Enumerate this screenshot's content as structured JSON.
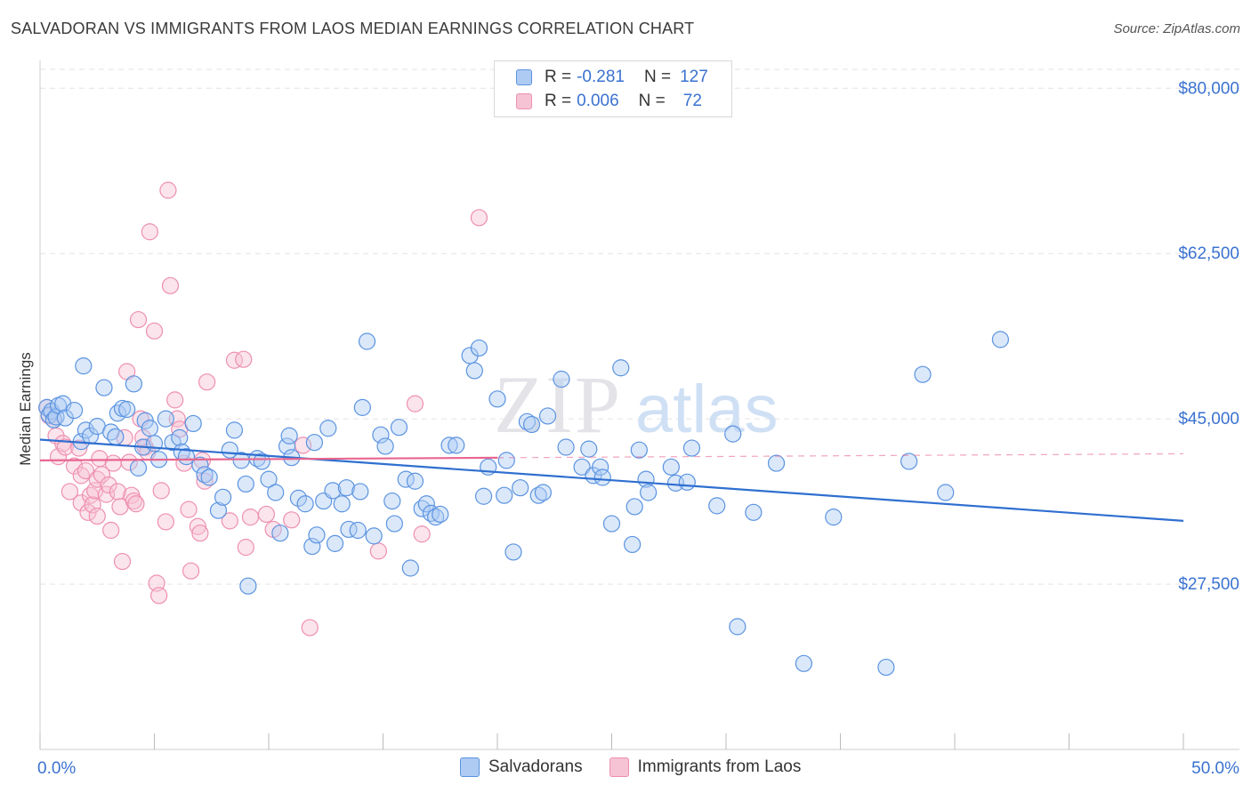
{
  "title": "SALVADORAN VS IMMIGRANTS FROM LAOS MEDIAN EARNINGS CORRELATION CHART",
  "source": "Source: ZipAtlas.com",
  "watermark": {
    "zip": "ZIP",
    "atlas": "atlas"
  },
  "colors": {
    "blue": "#5b93e0",
    "blue_fill": "#aecbf3",
    "blue_line": "#2f6fd0",
    "pink": "#ee8fb0",
    "pink_fill": "#f6c3d5",
    "pink_line": "#e8668f",
    "tick_text": "#3a72d0",
    "grid": "#e3e3e3"
  },
  "legend": {
    "rows": [
      {
        "r_label": "R =",
        "r_value": "-0.281",
        "n_label": "N =",
        "n_value": "127",
        "series": "blue"
      },
      {
        "r_label": "R =",
        "r_value": "0.006",
        "n_label": "N =",
        "n_value": "72",
        "series": "pink"
      }
    ]
  },
  "bottom_legend": [
    {
      "label": "Salvadorans",
      "series": "blue"
    },
    {
      "label": "Immigrants from Laos",
      "series": "pink"
    }
  ],
  "chart_data": {
    "type": "scatter",
    "title": "SALVADORAN VS IMMIGRANTS FROM LAOS MEDIAN EARNINGS CORRELATION CHART",
    "xlabel": "",
    "ylabel": "Median Earnings",
    "xlim": [
      0,
      50
    ],
    "ylim": [
      10000,
      82000
    ],
    "x_tick_labels": [
      {
        "value": 0,
        "label": "0.0%"
      },
      {
        "value": 50,
        "label": "50.0%"
      }
    ],
    "y_tick_labels": [
      {
        "value": 80000,
        "label": "$80,000"
      },
      {
        "value": 62500,
        "label": "$62,500"
      },
      {
        "value": 45000,
        "label": "$45,000"
      },
      {
        "value": 27500,
        "label": "$27,500"
      }
    ],
    "grid": true,
    "series": [
      {
        "name": "Salvadorans",
        "color": "blue",
        "trend": {
          "x": [
            0,
            50
          ],
          "y": [
            42800,
            34200
          ],
          "dashed_from": null
        },
        "points": [
          [
            0.3,
            46200
          ],
          [
            0.4,
            45400
          ],
          [
            0.5,
            45800
          ],
          [
            0.6,
            44900
          ],
          [
            0.7,
            45200
          ],
          [
            0.8,
            46400
          ],
          [
            1.0,
            46600
          ],
          [
            1.1,
            45100
          ],
          [
            1.5,
            45900
          ],
          [
            1.8,
            42600
          ],
          [
            1.9,
            50600
          ],
          [
            2.0,
            43800
          ],
          [
            2.2,
            43200
          ],
          [
            2.5,
            44200
          ],
          [
            2.8,
            48300
          ],
          [
            3.1,
            43600
          ],
          [
            3.3,
            43100
          ],
          [
            3.4,
            45600
          ],
          [
            3.6,
            46100
          ],
          [
            3.8,
            46000
          ],
          [
            4.1,
            48700
          ],
          [
            4.3,
            39800
          ],
          [
            4.5,
            42000
          ],
          [
            4.6,
            44800
          ],
          [
            4.8,
            44000
          ],
          [
            5.0,
            42400
          ],
          [
            5.2,
            40700
          ],
          [
            5.5,
            45000
          ],
          [
            5.8,
            42500
          ],
          [
            6.1,
            43000
          ],
          [
            6.2,
            41500
          ],
          [
            6.4,
            41000
          ],
          [
            6.7,
            44500
          ],
          [
            7.0,
            40100
          ],
          [
            7.2,
            39100
          ],
          [
            7.4,
            38800
          ],
          [
            7.8,
            35300
          ],
          [
            8.0,
            36700
          ],
          [
            8.3,
            41700
          ],
          [
            8.5,
            43800
          ],
          [
            8.8,
            40600
          ],
          [
            9.0,
            38100
          ],
          [
            9.1,
            27300
          ],
          [
            9.5,
            40800
          ],
          [
            9.7,
            40500
          ],
          [
            10.0,
            38600
          ],
          [
            10.3,
            37200
          ],
          [
            10.5,
            32900
          ],
          [
            10.8,
            42100
          ],
          [
            10.9,
            43200
          ],
          [
            11.0,
            40900
          ],
          [
            11.3,
            36600
          ],
          [
            11.6,
            36000
          ],
          [
            11.9,
            31500
          ],
          [
            12.0,
            42500
          ],
          [
            12.1,
            32700
          ],
          [
            12.4,
            36300
          ],
          [
            12.6,
            44000
          ],
          [
            12.8,
            37400
          ],
          [
            12.9,
            31800
          ],
          [
            13.2,
            36000
          ],
          [
            13.4,
            37700
          ],
          [
            13.5,
            33300
          ],
          [
            13.9,
            33200
          ],
          [
            14.0,
            37300
          ],
          [
            14.1,
            46200
          ],
          [
            14.3,
            53200
          ],
          [
            14.6,
            32600
          ],
          [
            14.9,
            43300
          ],
          [
            15.1,
            42100
          ],
          [
            15.4,
            36300
          ],
          [
            15.5,
            33900
          ],
          [
            15.7,
            44100
          ],
          [
            16.0,
            38600
          ],
          [
            16.2,
            29200
          ],
          [
            16.4,
            38400
          ],
          [
            16.7,
            35500
          ],
          [
            16.9,
            36000
          ],
          [
            17.1,
            35000
          ],
          [
            17.3,
            34600
          ],
          [
            17.5,
            34900
          ],
          [
            17.9,
            42200
          ],
          [
            18.2,
            42200
          ],
          [
            18.8,
            51700
          ],
          [
            19.0,
            50100
          ],
          [
            19.2,
            52500
          ],
          [
            19.4,
            36800
          ],
          [
            19.6,
            39900
          ],
          [
            20.0,
            47100
          ],
          [
            20.3,
            36900
          ],
          [
            20.4,
            40600
          ],
          [
            20.7,
            30900
          ],
          [
            21.0,
            37700
          ],
          [
            21.3,
            44700
          ],
          [
            21.5,
            44400
          ],
          [
            21.8,
            36900
          ],
          [
            22.0,
            37200
          ],
          [
            22.2,
            45300
          ],
          [
            22.8,
            49200
          ],
          [
            23.0,
            42000
          ],
          [
            23.7,
            39900
          ],
          [
            24.0,
            41800
          ],
          [
            24.2,
            39000
          ],
          [
            24.5,
            39900
          ],
          [
            24.6,
            38800
          ],
          [
            25.0,
            33900
          ],
          [
            25.4,
            50400
          ],
          [
            25.9,
            31700
          ],
          [
            26.0,
            35700
          ],
          [
            26.2,
            41700
          ],
          [
            26.5,
            38600
          ],
          [
            26.6,
            37200
          ],
          [
            27.6,
            39900
          ],
          [
            27.8,
            38200
          ],
          [
            28.3,
            38300
          ],
          [
            28.5,
            41900
          ],
          [
            29.6,
            35800
          ],
          [
            30.3,
            43400
          ],
          [
            30.5,
            23000
          ],
          [
            31.2,
            35100
          ],
          [
            32.2,
            40300
          ],
          [
            33.4,
            19100
          ],
          [
            34.7,
            34600
          ],
          [
            37.0,
            18700
          ],
          [
            38.0,
            40500
          ],
          [
            38.6,
            49700
          ],
          [
            39.6,
            37200
          ],
          [
            42.0,
            53400
          ]
        ]
      },
      {
        "name": "Immigrants from Laos",
        "color": "pink",
        "trend": {
          "x": [
            0,
            50
          ],
          "y": [
            40600,
            41300
          ],
          "dashed_from": 20
        },
        "points": [
          [
            0.3,
            46200
          ],
          [
            0.4,
            45300
          ],
          [
            0.6,
            44900
          ],
          [
            0.7,
            43200
          ],
          [
            0.8,
            41000
          ],
          [
            1.0,
            42400
          ],
          [
            1.1,
            42000
          ],
          [
            1.3,
            37300
          ],
          [
            1.5,
            40000
          ],
          [
            1.7,
            41900
          ],
          [
            1.8,
            39000
          ],
          [
            1.8,
            36100
          ],
          [
            2.0,
            39500
          ],
          [
            2.1,
            35100
          ],
          [
            2.2,
            36900
          ],
          [
            2.3,
            35900
          ],
          [
            2.4,
            37400
          ],
          [
            2.5,
            38600
          ],
          [
            2.5,
            34700
          ],
          [
            2.6,
            40800
          ],
          [
            2.7,
            39100
          ],
          [
            2.9,
            37000
          ],
          [
            3.0,
            38000
          ],
          [
            3.1,
            33200
          ],
          [
            3.2,
            40300
          ],
          [
            3.4,
            37300
          ],
          [
            3.5,
            35700
          ],
          [
            3.6,
            29900
          ],
          [
            3.7,
            43000
          ],
          [
            3.8,
            50000
          ],
          [
            3.9,
            40400
          ],
          [
            4.0,
            36900
          ],
          [
            4.1,
            36300
          ],
          [
            4.2,
            36000
          ],
          [
            4.3,
            55500
          ],
          [
            4.4,
            45000
          ],
          [
            4.5,
            43000
          ],
          [
            4.6,
            42000
          ],
          [
            4.7,
            41500
          ],
          [
            4.8,
            64800
          ],
          [
            5.0,
            54300
          ],
          [
            5.1,
            27600
          ],
          [
            5.2,
            26300
          ],
          [
            5.3,
            37400
          ],
          [
            5.5,
            34100
          ],
          [
            5.6,
            69200
          ],
          [
            5.7,
            59100
          ],
          [
            5.9,
            47000
          ],
          [
            6.0,
            45000
          ],
          [
            6.1,
            43900
          ],
          [
            6.3,
            40300
          ],
          [
            6.5,
            35400
          ],
          [
            6.6,
            28900
          ],
          [
            6.9,
            33600
          ],
          [
            7.0,
            32900
          ],
          [
            7.1,
            40600
          ],
          [
            7.2,
            38400
          ],
          [
            7.3,
            48900
          ],
          [
            8.3,
            34200
          ],
          [
            8.5,
            51200
          ],
          [
            8.9,
            51300
          ],
          [
            9.0,
            31400
          ],
          [
            9.2,
            34600
          ],
          [
            9.9,
            34900
          ],
          [
            10.2,
            33300
          ],
          [
            11.0,
            34300
          ],
          [
            11.5,
            42200
          ],
          [
            11.8,
            22900
          ],
          [
            14.8,
            31000
          ],
          [
            16.4,
            46600
          ],
          [
            16.7,
            32800
          ],
          [
            19.2,
            66300
          ]
        ]
      }
    ]
  }
}
